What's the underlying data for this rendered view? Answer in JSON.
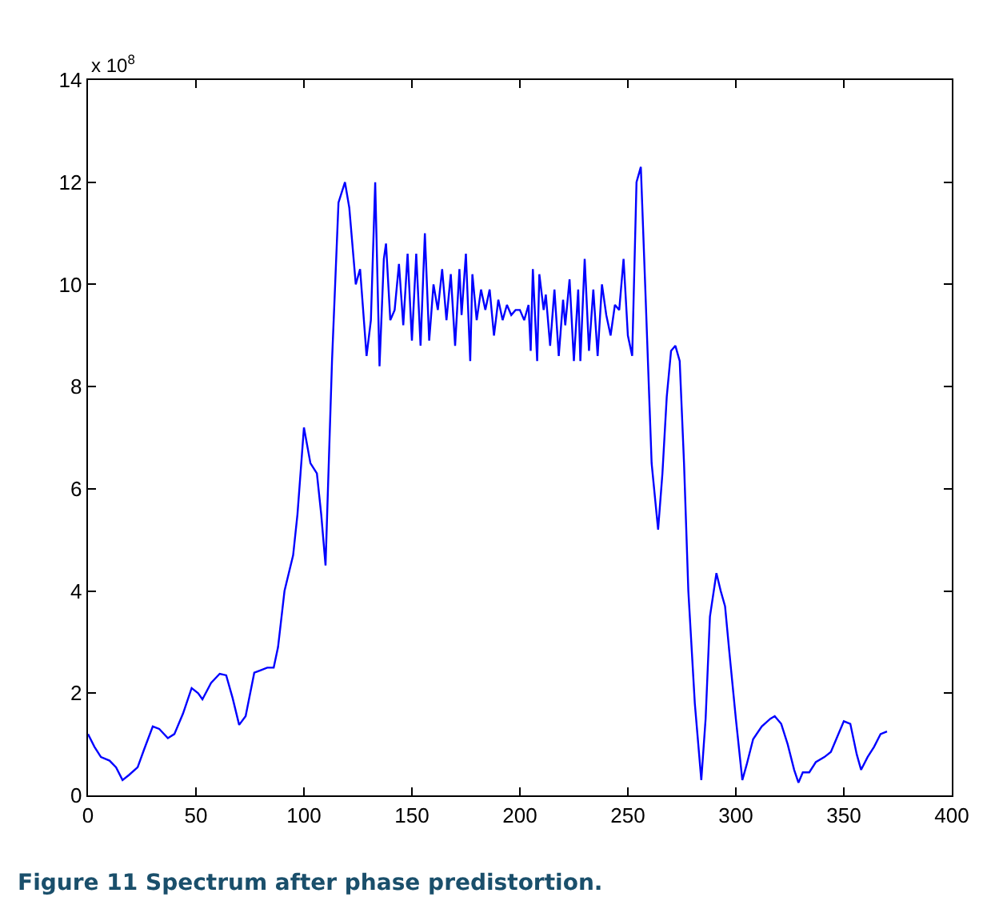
{
  "chart_data": {
    "type": "line",
    "annotations": [
      "x 10$^{8}$",
      "Figure 11 Spectrum after phase predistortion."
    ],
    "xlim": [
      0,
      400
    ],
    "xticks": [
      0,
      50,
      100,
      150,
      200,
      250,
      300,
      350,
      400
    ],
    "ylim": [
      0,
      14
    ],
    "yticks": [
      0,
      2,
      4,
      6,
      8,
      10,
      12,
      14
    ],
    "grid": false,
    "marker": "none",
    "line_style": "solid",
    "series": [
      {
        "color": "#0000ff",
        "x": [
          0,
          3,
          6,
          10,
          13,
          16,
          19,
          23,
          26,
          30,
          33,
          37,
          40,
          44,
          48,
          51,
          53,
          57,
          61,
          64,
          67,
          70,
          73,
          77,
          80,
          83,
          86,
          88,
          91,
          95,
          97,
          100,
          103,
          106,
          108,
          110,
          113,
          116,
          119,
          121,
          124,
          126,
          129,
          131,
          133,
          135,
          137,
          138,
          140,
          142,
          144,
          146,
          148,
          150,
          152,
          154,
          156,
          158,
          160,
          162,
          164,
          166,
          168,
          170,
          172,
          173,
          175,
          177,
          178,
          180,
          182,
          184,
          186,
          188,
          190,
          192,
          194,
          196,
          198,
          200,
          202,
          204,
          205,
          206,
          208,
          209,
          211,
          212,
          214,
          216,
          218,
          220,
          221,
          223,
          225,
          227,
          228,
          230,
          232,
          234,
          236,
          238,
          240,
          242,
          244,
          246,
          248,
          250,
          252,
          254,
          256,
          258,
          261,
          264,
          266,
          268,
          270,
          272,
          274,
          276,
          278,
          281,
          284,
          286,
          288,
          291,
          293,
          295,
          297,
          300,
          303,
          305,
          308,
          312,
          316,
          318,
          321,
          324,
          327,
          329,
          331,
          334,
          337,
          341,
          344,
          347,
          350,
          353,
          356,
          358,
          361,
          364,
          367,
          370
        ],
        "values": [
          1.2,
          0.95,
          0.75,
          0.68,
          0.55,
          0.3,
          0.4,
          0.55,
          0.9,
          1.35,
          1.3,
          1.12,
          1.2,
          1.6,
          2.1,
          2.0,
          1.88,
          2.2,
          2.38,
          2.35,
          1.9,
          1.38,
          1.55,
          2.4,
          2.45,
          2.5,
          2.5,
          2.9,
          4.0,
          4.7,
          5.5,
          7.2,
          6.5,
          6.3,
          5.5,
          4.5,
          8.5,
          11.6,
          12.0,
          11.5,
          10.0,
          10.3,
          8.6,
          9.3,
          12.0,
          8.4,
          10.5,
          10.8,
          9.3,
          9.5,
          10.4,
          9.2,
          10.6,
          8.9,
          10.6,
          8.8,
          11.0,
          8.9,
          10.0,
          9.5,
          10.3,
          9.3,
          10.2,
          8.8,
          10.3,
          9.4,
          10.6,
          8.5,
          10.2,
          9.3,
          9.9,
          9.5,
          9.9,
          9.0,
          9.7,
          9.3,
          9.6,
          9.4,
          9.5,
          9.5,
          9.3,
          9.6,
          8.7,
          10.3,
          8.5,
          10.2,
          9.5,
          9.8,
          8.8,
          9.9,
          8.6,
          9.7,
          9.2,
          10.1,
          8.5,
          9.9,
          8.5,
          10.5,
          8.7,
          9.9,
          8.6,
          10.0,
          9.4,
          9.0,
          9.6,
          9.5,
          10.5,
          9.0,
          8.6,
          12.0,
          12.3,
          10.0,
          6.5,
          5.2,
          6.3,
          7.8,
          8.7,
          8.8,
          8.5,
          6.5,
          4.0,
          1.8,
          0.3,
          1.5,
          3.5,
          4.35,
          4.0,
          3.7,
          2.8,
          1.5,
          0.3,
          0.6,
          1.1,
          1.35,
          1.5,
          1.55,
          1.4,
          1.0,
          0.5,
          0.25,
          0.45,
          0.45,
          0.65,
          0.75,
          0.85,
          1.15,
          1.45,
          1.4,
          0.8,
          0.5,
          0.75,
          0.95,
          1.2,
          1.25
        ]
      }
    ]
  }
}
